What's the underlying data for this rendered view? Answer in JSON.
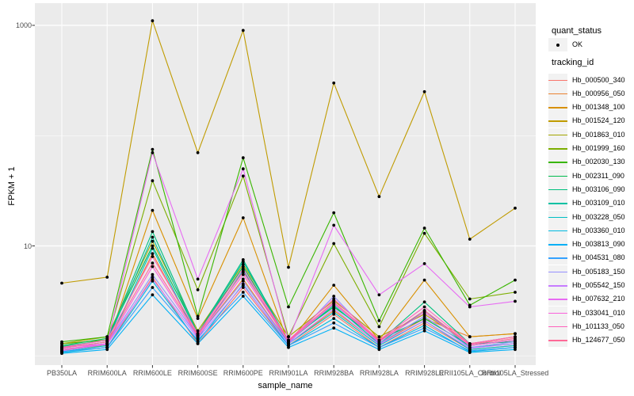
{
  "chart_data": {
    "type": "line",
    "title": "",
    "xlabel": "sample_name",
    "ylabel": "FPKM + 1",
    "y_scale": "log10",
    "ylim_log": [
      -0.08,
      3.2
    ],
    "grid": true,
    "panel_bg": "#EBEBEB",
    "grid_color": "#FFFFFF",
    "tick_color": "#333333",
    "tick_label_color": "#4D4D4D",
    "point_shape": "filled-circle",
    "point_color": "#000000",
    "y_ticks": [
      {
        "label": "1000",
        "value": 1000
      },
      {
        "label": "10",
        "value": 10
      }
    ],
    "y_minor": [
      100,
      1
    ],
    "categories": [
      "PB350LA",
      "RRIM600LA",
      "RRIM600LE",
      "RRIM600SE",
      "RRIM600PE",
      "RRIM901LA",
      "RRIM928BA",
      "RRIM928LA",
      "RRIM928LE",
      "RRII105LA_Control",
      "RRII105LA_Stressed"
    ],
    "series": [
      {
        "name": "Hb_000500_340",
        "color": "#F8766D",
        "values": [
          1.1,
          1.2,
          5.2,
          1.3,
          4.2,
          1.25,
          2.4,
          1.2,
          2.0,
          1.15,
          1.25
        ]
      },
      {
        "name": "Hb_000956_050",
        "color": "#EA8331",
        "values": [
          1.12,
          1.3,
          8.5,
          1.5,
          5.0,
          1.3,
          2.6,
          1.3,
          2.2,
          1.5,
          1.6
        ]
      },
      {
        "name": "Hb_001348_100",
        "color": "#D89000",
        "values": [
          1.15,
          1.25,
          21,
          2.2,
          18,
          1.3,
          4.4,
          1.4,
          4.9,
          1.5,
          1.6
        ]
      },
      {
        "name": "Hb_001524_120",
        "color": "#C09B00",
        "values": [
          4.6,
          5.2,
          1100,
          70,
          900,
          6.4,
          300,
          28,
          250,
          11.5,
          22
        ]
      },
      {
        "name": "Hb_001863_010",
        "color": "#A3A500",
        "values": [
          1.3,
          1.5,
          11,
          1.7,
          6.8,
          1.5,
          3.2,
          1.5,
          2.4,
          1.3,
          1.5
        ]
      },
      {
        "name": "Hb_001999_160",
        "color": "#7CAE00",
        "values": [
          1.3,
          1.4,
          39,
          4.0,
          43,
          1.5,
          10.5,
          1.85,
          13,
          3.3,
          3.8
        ]
      },
      {
        "name": "Hb_002030_130",
        "color": "#39B600",
        "values": [
          1.35,
          1.5,
          75,
          2.3,
          63,
          2.8,
          20,
          2.1,
          14.5,
          2.9,
          4.9
        ]
      },
      {
        "name": "Hb_002311_090",
        "color": "#00BB4E",
        "values": [
          1.25,
          1.45,
          10,
          1.6,
          6.5,
          1.4,
          2.8,
          1.4,
          2.2,
          1.25,
          1.4
        ]
      },
      {
        "name": "Hb_003106_090",
        "color": "#00BF7D",
        "values": [
          1.22,
          1.4,
          13.5,
          1.6,
          7.5,
          1.35,
          3.0,
          1.35,
          3.1,
          1.3,
          1.35
        ]
      },
      {
        "name": "Hb_003109_010",
        "color": "#00C1A3",
        "values": [
          1.18,
          1.35,
          12,
          1.55,
          7.2,
          1.35,
          2.9,
          1.3,
          2.6,
          1.2,
          1.3
        ]
      },
      {
        "name": "Hb_003228_050",
        "color": "#00BFC4",
        "values": [
          1.1,
          1.25,
          9.5,
          1.45,
          6.0,
          1.3,
          2.5,
          1.25,
          2.1,
          1.15,
          1.25
        ]
      },
      {
        "name": "Hb_003360_010",
        "color": "#00BAE0",
        "values": [
          1.08,
          1.2,
          4.8,
          1.35,
          4.5,
          1.25,
          2.2,
          1.2,
          1.9,
          1.1,
          1.2
        ]
      },
      {
        "name": "Hb_003813_090",
        "color": "#00B0F6",
        "values": [
          1.06,
          1.15,
          3.6,
          1.3,
          3.5,
          1.2,
          1.8,
          1.15,
          1.7,
          1.08,
          1.15
        ]
      },
      {
        "name": "Hb_004531_080",
        "color": "#35A2FF",
        "values": [
          1.1,
          1.2,
          4.2,
          1.4,
          3.8,
          1.25,
          2.0,
          1.2,
          1.8,
          1.12,
          1.2
        ]
      },
      {
        "name": "Hb_005183_150",
        "color": "#9590FF",
        "values": [
          1.15,
          1.3,
          5.5,
          1.5,
          4.8,
          1.3,
          3.5,
          1.3,
          2.3,
          1.2,
          1.35
        ]
      },
      {
        "name": "Hb_005542_150",
        "color": "#C77CFF",
        "values": [
          1.12,
          1.28,
          5.0,
          1.45,
          4.4,
          1.3,
          2.7,
          1.28,
          2.1,
          1.18,
          1.3
        ]
      },
      {
        "name": "Hb_007632_210",
        "color": "#E76BF3",
        "values": [
          1.2,
          1.3,
          70,
          5.0,
          50,
          1.4,
          15.4,
          3.6,
          6.9,
          2.8,
          3.15
        ]
      },
      {
        "name": "Hb_033041_010",
        "color": "#FA62DB",
        "values": [
          1.15,
          1.3,
          6.5,
          1.5,
          5.5,
          1.35,
          3.0,
          1.35,
          2.5,
          1.25,
          1.4
        ]
      },
      {
        "name": "Hb_101133_050",
        "color": "#FF62BC",
        "values": [
          1.2,
          1.4,
          8.0,
          1.6,
          6.2,
          1.4,
          3.3,
          1.4,
          2.8,
          1.3,
          1.5
        ]
      },
      {
        "name": "Hb_124677_050",
        "color": "#FF6A98",
        "values": [
          1.18,
          1.35,
          7.0,
          1.55,
          5.8,
          1.38,
          3.1,
          1.38,
          2.6,
          1.28,
          1.45
        ]
      }
    ]
  },
  "legend": {
    "quant_title": "quant_status",
    "quant_items": [
      {
        "label": "OK",
        "symbol": "black-point"
      }
    ],
    "tracking_title": "tracking_id"
  }
}
